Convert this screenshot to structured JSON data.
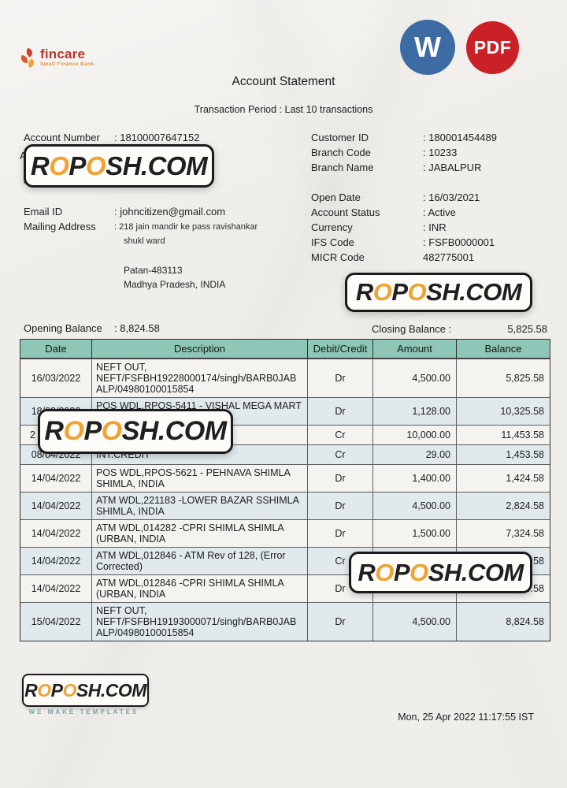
{
  "brand": {
    "name": "fincare",
    "tagline": "Small Finance Bank",
    "name_color": "#b9372f",
    "tagline_color": "#e78f3c"
  },
  "badges": {
    "word": {
      "label": "W",
      "color": "#3d6ca4"
    },
    "pdf": {
      "label": "PDF",
      "color": "#c92127"
    }
  },
  "header": {
    "title": "Account Statement",
    "subtitle": "Transaction Period : Last 10 transactions"
  },
  "account_details": {
    "left": [
      {
        "label": "Account Number",
        "value": ": 18100007647152"
      },
      {
        "label": "A",
        "value": ""
      },
      {
        "label": "Joint Account",
        "value": ": NA"
      },
      {
        "label": "Email  ID",
        "value": ": johncitizen@gmail.com"
      },
      {
        "label": "Mailing Address",
        "value": ": 218 jain mandir ke pass ravishankar"
      }
    ],
    "address_extra": [
      "shukl ward",
      "Patan-483113",
      "Madhya Pradesh, INDIA"
    ],
    "right": [
      {
        "label": "Customer ID",
        "value": ": 180001454489"
      },
      {
        "label": "Branch Code",
        "value": ": 10233"
      },
      {
        "label": "Branch Name",
        "value": ": JABALPUR"
      },
      {
        "label": "Open Date",
        "value": ": 16/03/2021"
      },
      {
        "label": "Account Status",
        "value": ": Active"
      },
      {
        "label": "Currency",
        "value": ": INR"
      },
      {
        "label": "IFS Code",
        "value": ": FSFB0000001"
      },
      {
        "label": "MICR Code",
        "value": "482775001"
      }
    ]
  },
  "balances": {
    "opening_label": "Opening Balance",
    "opening_value": ": 8,824.58",
    "closing_label": "Closing Balance  :",
    "closing_value": "5,825.58"
  },
  "table": {
    "headers": [
      "Date",
      "Description",
      "Debit/Credit",
      "Amount",
      "Balance"
    ],
    "rows": [
      {
        "date": "16/03/2022",
        "description": "NEFT OUT,\nNEFT/FSFBH19228000174/singh/BARB0JAB\nALP/04980100015854",
        "dc": "Dr",
        "amount": "4,500.00",
        "balance": "5,825.58",
        "tint": false
      },
      {
        "date": "18/03/2022",
        "description": "POS WDL,RPOS-5411 - VISHAL MEGA MART\nSOLAN, INDIA",
        "dc": "Dr",
        "amount": "1,128.00",
        "balance": "10,325.58",
        "tint": true
      },
      {
        "date": "2",
        "date_left": true,
        "description": "",
        "dc": "Cr",
        "amount": "10,000.00",
        "balance": "11,453.58",
        "tint": false
      },
      {
        "date": "08/04/2022",
        "description": "INT.CREDIT",
        "dc": "Cr",
        "amount": "29.00",
        "balance": "1,453.58",
        "tint": true
      },
      {
        "date": "14/04/2022",
        "description": "POS WDL,RPOS-5621 - PEHNAVA SHIMLA\nSHIMLA, INDIA",
        "dc": "Dr",
        "amount": "1,400.00",
        "balance": "1,424.58",
        "tint": false
      },
      {
        "date": "14/04/2022",
        "description": "ATM WDL,221183 -LOWER BAZAR SSHIMLA\nSHIMLA, INDIA",
        "dc": "Dr",
        "amount": "4,500.00",
        "balance": "2,824.58",
        "tint": true
      },
      {
        "date": "14/04/2022",
        "description": "ATM WDL,014282 -CPRI SHIMLA SHIMLA\n(URBAN, INDIA",
        "dc": "Dr",
        "amount": "1,500.00",
        "balance": "7,324.58",
        "tint": false
      },
      {
        "date": "14/04/2022",
        "description": "ATM WDL,012846 - ATM Rev of 128, (Error\nCorrected)",
        "dc": "Cr",
        "amount": "2,000.00",
        "balance": "8,824.58",
        "tint": true
      },
      {
        "date": "14/04/2022",
        "description": "ATM WDL,012846 -CPRI SHIMLA SHIMLA\n(URBAN, INDIA",
        "dc": "Dr",
        "amount": "",
        "balance": "8,824.58",
        "tint": false
      },
      {
        "date": "15/04/2022",
        "description": "NEFT OUT,\nNEFT/FSFBH19193000071/singh/BARB0JAB\nALP/04980100015854",
        "dc": "Dr",
        "amount": "4,500.00",
        "balance": "8,824.58",
        "tint": true
      }
    ]
  },
  "watermark": {
    "text": "ROPOSH.COM",
    "segments": [
      {
        "t": "R"
      },
      {
        "t": "O",
        "o": true
      },
      {
        "t": "P"
      },
      {
        "t": "O",
        "o": true
      },
      {
        "t": "SH.COM"
      }
    ],
    "dark": "#1f1f1f",
    "orange": "#f0a232",
    "tagline": "WE MAKE TEMPLATES",
    "tagline_color": "#74a4ac"
  },
  "footer": {
    "timestamp": "Mon, 25 Apr 2022 11:17:55 IST"
  }
}
